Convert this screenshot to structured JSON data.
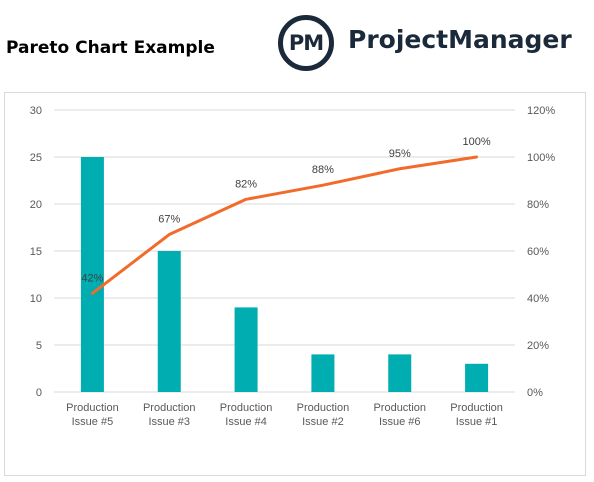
{
  "page_title": "Pareto Chart Example",
  "logo": {
    "mark": "PM",
    "name": "ProjectManager"
  },
  "chart_data": {
    "type": "bar",
    "categories": [
      [
        "Production",
        "Issue #5"
      ],
      [
        "Production",
        "Issue #3"
      ],
      [
        "Production",
        "Issue #4"
      ],
      [
        "Production",
        "Issue #2"
      ],
      [
        "Production",
        "Issue #6"
      ],
      [
        "Production",
        "Issue #1"
      ]
    ],
    "values": [
      25,
      15,
      9,
      4,
      4,
      3
    ],
    "cumulative_percent": [
      42,
      67,
      82,
      88,
      95,
      100
    ],
    "cumulative_labels": [
      "42%",
      "67%",
      "82%",
      "88%",
      "95%",
      "100%"
    ],
    "ylim": [
      0,
      30
    ],
    "yticks": [
      0,
      5,
      10,
      15,
      20,
      25,
      30
    ],
    "y2lim": [
      0,
      120
    ],
    "y2ticks": [
      "0%",
      "20%",
      "40%",
      "60%",
      "80%",
      "100%",
      "120%"
    ],
    "grid": true,
    "legend": "none",
    "colors": {
      "bar": "#00adb0",
      "line": "#f26b2a",
      "grid": "#d9d9d9",
      "text": "#595959"
    }
  }
}
